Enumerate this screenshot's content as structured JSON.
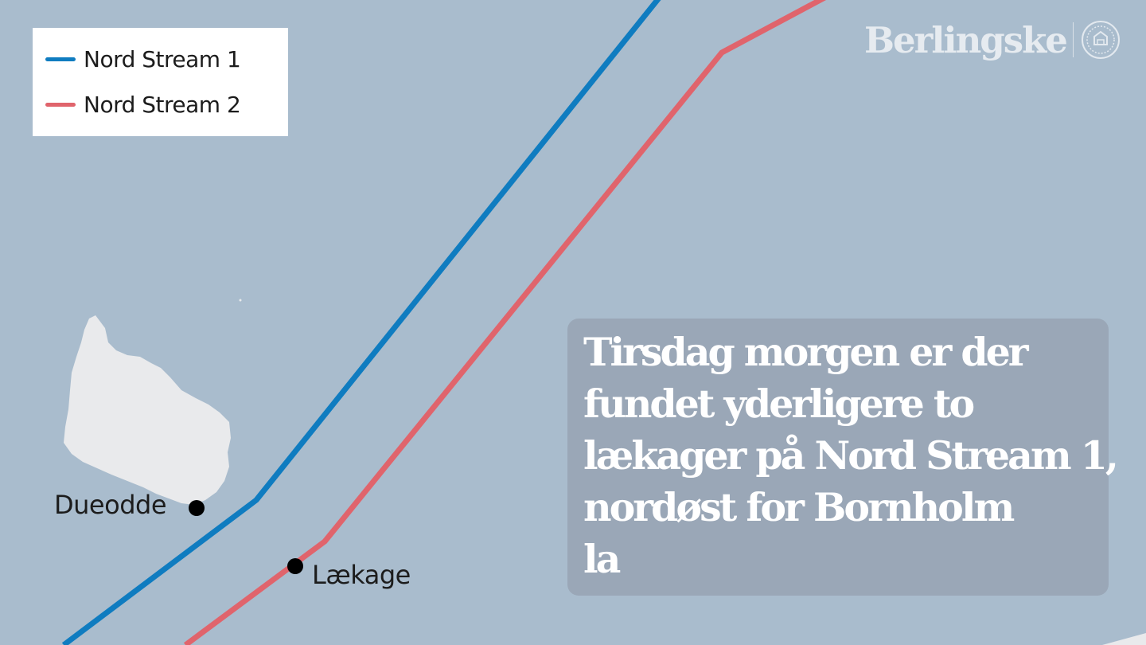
{
  "legend": {
    "items": [
      {
        "label": "Nord Stream 1",
        "color": "#0f7cc0"
      },
      {
        "label": "Nord Stream 2",
        "color": "#e0646c"
      }
    ]
  },
  "places": {
    "dueodde": "Dueodde",
    "leak": "Lækage"
  },
  "brand": {
    "name": "Berlingske"
  },
  "caption": {
    "lines": [
      "Tirsdag morgen er der",
      "fundet yderligere to",
      "lækager på Nord Stream 1,",
      "nordøst for Bornholm",
      "la"
    ]
  },
  "colors": {
    "sea": "#a9bccd",
    "land": "#e9eaec",
    "caption_box": "#9aa7b7",
    "marker": "#000000"
  }
}
